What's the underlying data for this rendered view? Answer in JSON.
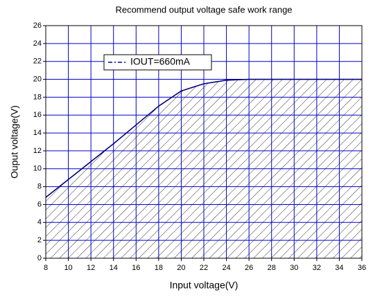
{
  "chart_data": {
    "type": "line",
    "title": "Recommend output voltage safe work range",
    "x_label": "Input voltage(V)",
    "y_label": "Ouput voltage(V)",
    "x": [
      8,
      10,
      12,
      14,
      16,
      18,
      20,
      22,
      24,
      26,
      28,
      30,
      32,
      34,
      36
    ],
    "series": [
      {
        "name": "IOUT=660mA",
        "color": "#000080",
        "values": [
          6.8,
          8.8,
          10.8,
          12.8,
          14.9,
          17.0,
          18.7,
          19.5,
          19.9,
          20,
          20,
          20,
          20,
          20,
          20
        ]
      }
    ],
    "xlim": [
      8,
      36
    ],
    "ylim": [
      0,
      26
    ],
    "xticks": [
      8,
      10,
      12,
      14,
      16,
      18,
      20,
      22,
      24,
      26,
      28,
      30,
      32,
      34,
      36
    ],
    "yticks": [
      0,
      2,
      4,
      6,
      8,
      10,
      12,
      14,
      16,
      18,
      20,
      22,
      24,
      26
    ],
    "grid": true,
    "grid_color": "#0000cc",
    "area_hatch": true,
    "legend": "upper left"
  }
}
